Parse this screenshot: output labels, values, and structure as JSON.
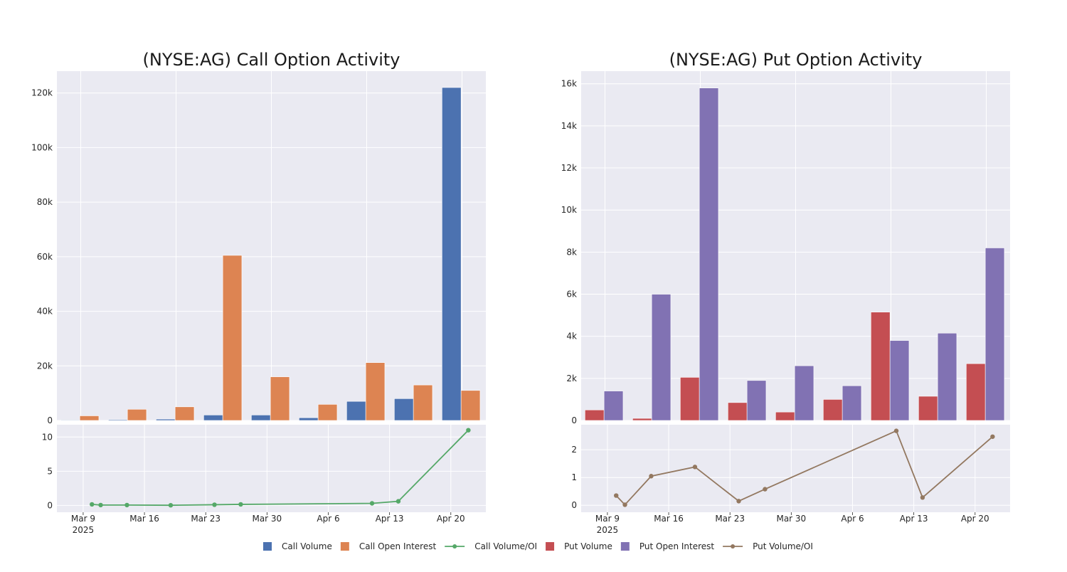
{
  "colors": {
    "plot_bg": "#EAEAF2",
    "grid": "#FFFFFF",
    "call_volume": "#4C72B0",
    "call_oi": "#DD8452",
    "call_ratio": "#55A868",
    "put_volume": "#C44E52",
    "put_oi": "#8172B3",
    "put_ratio": "#937860"
  },
  "chart_data": [
    {
      "id": "call",
      "type": "bar",
      "title": "(NYSE:AG) Call Option Activity",
      "ylim": [
        0,
        128000
      ],
      "yticks": [
        0,
        20000,
        40000,
        60000,
        80000,
        100000,
        120000
      ],
      "ytick_labels": [
        "0",
        "20k",
        "40k",
        "60k",
        "80k",
        "100k",
        "120k"
      ],
      "x_range": [
        "2025-03-06",
        "2025-04-24"
      ],
      "xticks": [
        "2025-03-09",
        "2025-03-16",
        "2025-03-23",
        "2025-03-30",
        "2025-04-06",
        "2025-04-13",
        "2025-04-20"
      ],
      "xtick_labels": [
        "Mar 9",
        "Mar 16",
        "Mar 23",
        "Mar 30",
        "Apr 6",
        "Apr 13",
        "Apr 20"
      ],
      "xtick_sublabel": "2025",
      "bar_positions": [
        0,
        1,
        2,
        3,
        4,
        5,
        6,
        7,
        8
      ],
      "series": [
        {
          "name": "Call Volume",
          "values": [
            200,
            300,
            500,
            2000,
            2000,
            1000,
            7000,
            8000,
            122000
          ]
        },
        {
          "name": "Call Open Interest",
          "values": [
            1700,
            4100,
            5000,
            60500,
            16000,
            5900,
            21200,
            13000,
            11000
          ]
        }
      ],
      "ratio": {
        "name": "Call Volume/OI",
        "ylim": [
          -1,
          11.8
        ],
        "yticks": [
          0,
          5,
          10
        ],
        "ytick_labels": [
          "0",
          "5",
          "10"
        ],
        "x": [
          "2025-03-10",
          "2025-03-11",
          "2025-03-14",
          "2025-03-19",
          "2025-03-24",
          "2025-03-27",
          "2025-04-11",
          "2025-04-14",
          "2025-04-22"
        ],
        "values": [
          0.15,
          0.05,
          0.05,
          0.02,
          0.1,
          0.15,
          0.3,
          0.6,
          11.0
        ]
      }
    },
    {
      "id": "put",
      "type": "bar",
      "title": "(NYSE:AG) Put Option Activity",
      "ylim": [
        0,
        16600
      ],
      "yticks": [
        0,
        2000,
        4000,
        6000,
        8000,
        10000,
        12000,
        14000,
        16000
      ],
      "ytick_labels": [
        "0",
        "2k",
        "4k",
        "6k",
        "8k",
        "10k",
        "12k",
        "14k",
        "16k"
      ],
      "x_range": [
        "2025-03-06",
        "2025-04-24"
      ],
      "xticks": [
        "2025-03-09",
        "2025-03-16",
        "2025-03-23",
        "2025-03-30",
        "2025-04-06",
        "2025-04-13",
        "2025-04-20"
      ],
      "xtick_labels": [
        "Mar 9",
        "Mar 16",
        "Mar 23",
        "Mar 30",
        "Apr 6",
        "Apr 13",
        "Apr 20"
      ],
      "xtick_sublabel": "2025",
      "bar_positions": [
        0,
        1,
        2,
        3,
        4,
        5,
        6,
        7,
        8
      ],
      "series": [
        {
          "name": "Put Volume",
          "values": [
            500,
            100,
            2050,
            850,
            400,
            1000,
            5150,
            1150,
            2700
          ]
        },
        {
          "name": "Put Open Interest",
          "values": [
            1400,
            6000,
            15800,
            1900,
            2600,
            1650,
            3800,
            4150,
            8200
          ]
        }
      ],
      "ratio": {
        "name": "Put Volume/OI",
        "ylim": [
          -0.25,
          2.9
        ],
        "yticks": [
          0,
          1,
          2
        ],
        "ytick_labels": [
          "0",
          "1",
          "2"
        ],
        "x": [
          "2025-03-10",
          "2025-03-11",
          "2025-03-14",
          "2025-03-19",
          "2025-03-24",
          "2025-03-27",
          "2025-04-11",
          "2025-04-14",
          "2025-04-22"
        ],
        "values": [
          0.35,
          0.02,
          1.05,
          1.38,
          0.15,
          0.58,
          2.68,
          0.28,
          2.47
        ]
      }
    }
  ],
  "legend": [
    {
      "label": "Call Volume",
      "kind": "square",
      "color": "#4C72B0"
    },
    {
      "label": "Call Open Interest",
      "kind": "square",
      "color": "#DD8452"
    },
    {
      "label": "Call Volume/OI",
      "kind": "line",
      "color": "#55A868"
    },
    {
      "label": "Put Volume",
      "kind": "square",
      "color": "#C44E52"
    },
    {
      "label": "Put Open Interest",
      "kind": "square",
      "color": "#8172B3"
    },
    {
      "label": "Put Volume/OI",
      "kind": "line",
      "color": "#937860"
    }
  ]
}
